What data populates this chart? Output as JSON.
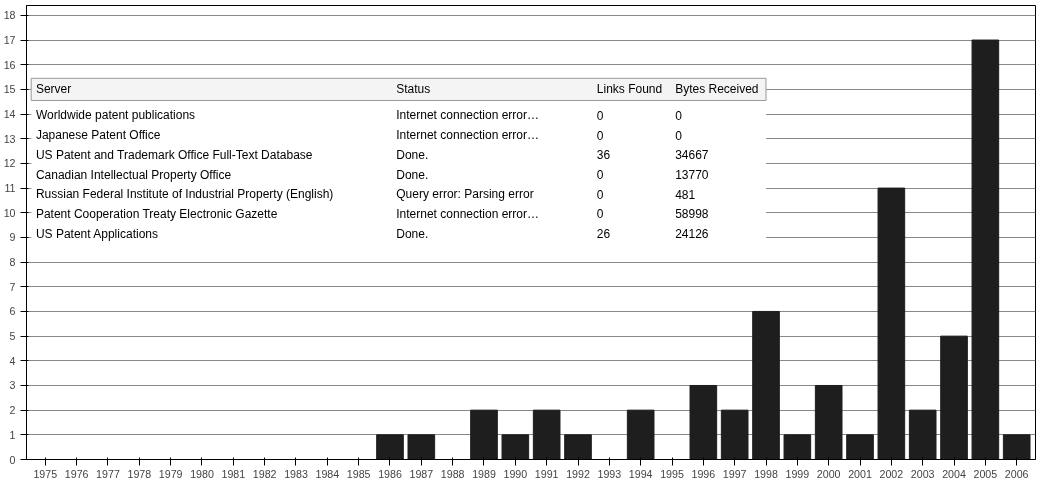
{
  "chart_data": {
    "type": "bar",
    "categories": [
      "1975",
      "1976",
      "1977",
      "1978",
      "1979",
      "1980",
      "1981",
      "1982",
      "1983",
      "1984",
      "1985",
      "1986",
      "1987",
      "1988",
      "1989",
      "1990",
      "1991",
      "1992",
      "1993",
      "1994",
      "1995",
      "1996",
      "1997",
      "1998",
      "1999",
      "2000",
      "2001",
      "2002",
      "2003",
      "2004",
      "2005",
      "2006"
    ],
    "values": [
      0,
      0,
      0,
      0,
      0,
      0,
      0,
      0,
      0,
      0,
      0,
      1,
      1,
      0,
      2,
      1,
      2,
      1,
      0,
      2,
      0,
      3,
      2,
      6,
      1,
      3,
      1,
      11,
      2,
      5,
      17,
      1
    ],
    "color": "#1e1e1e",
    "ylim": [
      0,
      18.4
    ],
    "yticks": [
      0,
      1,
      2,
      3,
      4,
      5,
      6,
      7,
      8,
      9,
      10,
      11,
      12,
      13,
      14,
      15,
      16,
      17,
      18
    ],
    "grid": "y",
    "annotations": [
      "Server",
      "Status",
      "Links Found",
      "Bytes Received",
      "Worldwide patent publications",
      "Internet connection error…",
      "0",
      "0",
      "Japanese Patent Office",
      "Internet connection error…",
      "0",
      "0",
      "US Patent and Trademark Office Full-Text Database",
      "Done.",
      "36",
      "34667",
      "Canadian Intellectual Property Office",
      "Done.",
      "0",
      "13770",
      "Russian Federal Institute of Industrial Property (English)",
      "Query error: Parsing error",
      "0",
      "481",
      "Patent Cooperation Treaty Electronic Gazette",
      "Internet connection error…",
      "0",
      "58998",
      "US Patent Applications",
      "Done.",
      "26",
      "24126"
    ]
  }
}
